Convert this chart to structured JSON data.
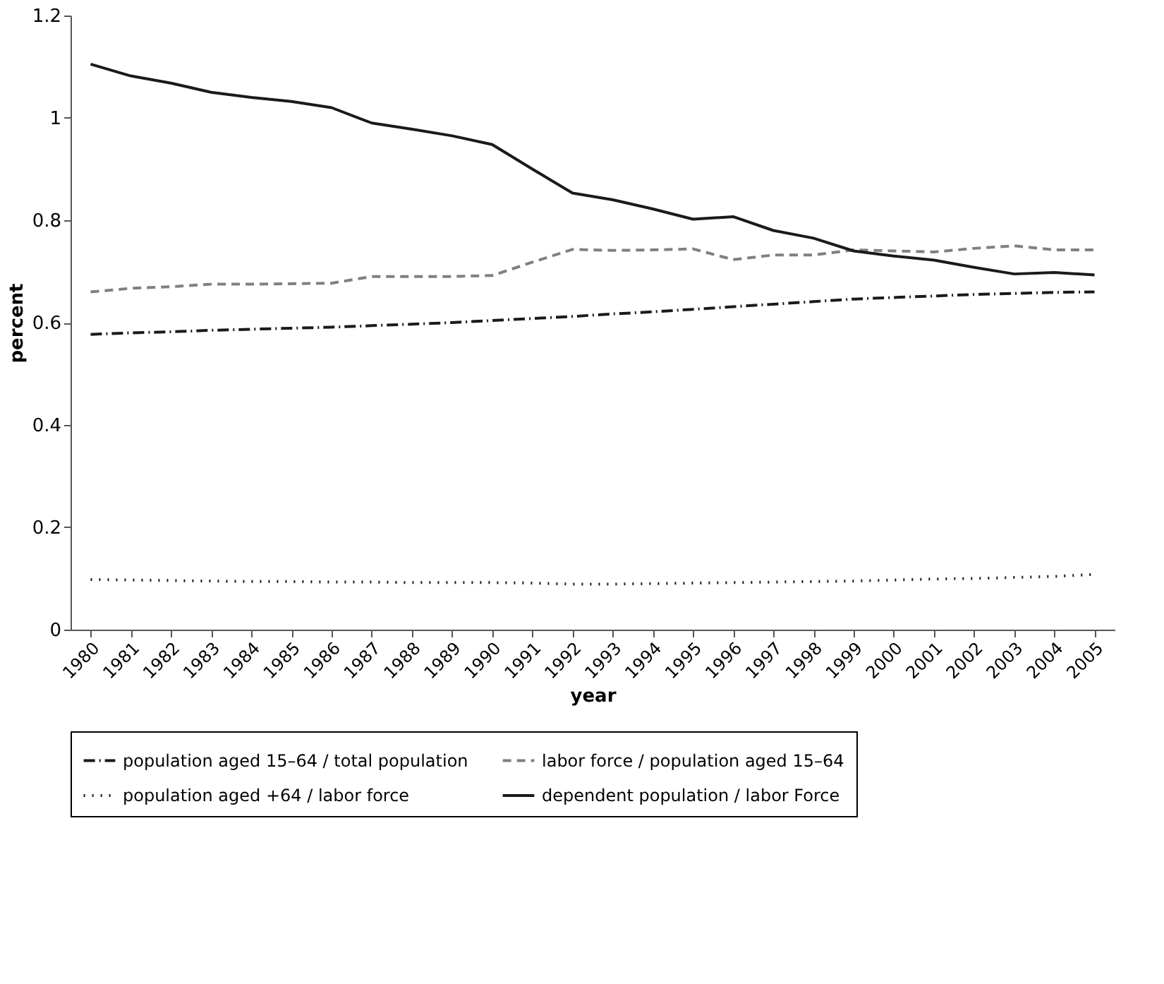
{
  "chart_data": {
    "type": "line",
    "xlabel": "year",
    "ylabel": "percent",
    "categories": [
      "1980",
      "1981",
      "1982",
      "1983",
      "1984",
      "1985",
      "1986",
      "1987",
      "1988",
      "1989",
      "1990",
      "1991",
      "1992",
      "1993",
      "1994",
      "1995",
      "1996",
      "1997",
      "1998",
      "1999",
      "2000",
      "2001",
      "2002",
      "2003",
      "2004",
      "2005"
    ],
    "series": [
      {
        "name": "population aged 15–64 / total population",
        "color": "#1a1a1a",
        "line_style": "dashdot",
        "values": [
          0.577,
          0.58,
          0.582,
          0.585,
          0.587,
          0.589,
          0.591,
          0.594,
          0.597,
          0.6,
          0.604,
          0.608,
          0.612,
          0.617,
          0.621,
          0.626,
          0.631,
          0.636,
          0.641,
          0.646,
          0.649,
          0.652,
          0.655,
          0.657,
          0.659,
          0.66
        ]
      },
      {
        "name": "labor force / population aged 15–64",
        "color": "#808080",
        "line_style": "dashed",
        "values": [
          0.66,
          0.667,
          0.67,
          0.675,
          0.675,
          0.676,
          0.677,
          0.69,
          0.69,
          0.69,
          0.692,
          0.718,
          0.743,
          0.741,
          0.742,
          0.744,
          0.723,
          0.732,
          0.732,
          0.742,
          0.74,
          0.738,
          0.745,
          0.75,
          0.742,
          0.742
        ]
      },
      {
        "name": "population aged +64 / labor force",
        "color": "#1a1a1a",
        "line_style": "dotted",
        "values": [
          0.098,
          0.097,
          0.096,
          0.095,
          0.094,
          0.094,
          0.093,
          0.093,
          0.092,
          0.092,
          0.092,
          0.091,
          0.089,
          0.089,
          0.09,
          0.091,
          0.092,
          0.093,
          0.094,
          0.095,
          0.097,
          0.099,
          0.1,
          0.102,
          0.104,
          0.108
        ]
      },
      {
        "name": "dependent population / labor Force",
        "color": "#1a1a1a",
        "line_style": "solid",
        "values": [
          1.105,
          1.082,
          1.068,
          1.05,
          1.04,
          1.032,
          1.02,
          0.99,
          0.978,
          0.965,
          0.948,
          0.9,
          0.853,
          0.84,
          0.822,
          0.802,
          0.807,
          0.78,
          0.765,
          0.74,
          0.73,
          0.722,
          0.708,
          0.695,
          0.698,
          0.693
        ]
      }
    ],
    "ylim": [
      0,
      1.2
    ],
    "yticks": [
      0,
      0.2,
      0.4,
      0.6,
      0.8,
      1,
      1.2
    ],
    "grid": false,
    "legend": "bottom",
    "marker": "none"
  }
}
